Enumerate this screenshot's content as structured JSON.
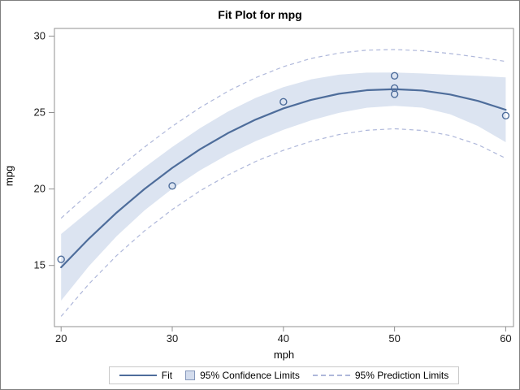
{
  "title": "Fit Plot for mpg",
  "colors": {
    "fit_line": "#4e6d9b",
    "marker": "#4e6d9b",
    "confidence_band": "#dce4f1",
    "prediction_line": "#aeb7da",
    "frame": "#919191",
    "tick_text": "#1a1a1a"
  },
  "legend": {
    "items": [
      {
        "label": "Fit",
        "swatch": "line"
      },
      {
        "label": "95% Confidence Limits",
        "swatch": "square"
      },
      {
        "label": "95% Prediction Limits",
        "swatch": "dashed-line"
      }
    ]
  },
  "chart_data": {
    "type": "scatter",
    "title": "Fit Plot for mpg",
    "xlabel": "mph",
    "ylabel": "mpg",
    "xlim": [
      19.4,
      60.7
    ],
    "ylim": [
      11.0,
      30.5
    ],
    "x_ticks": [
      20,
      30,
      40,
      50,
      60
    ],
    "y_ticks": [
      15,
      20,
      25,
      30
    ],
    "grid": false,
    "legend_position": "bottom",
    "points": [
      [
        20,
        15.4
      ],
      [
        30,
        20.2
      ],
      [
        40,
        25.7
      ],
      [
        50,
        26.2
      ],
      [
        50,
        26.6
      ],
      [
        50,
        27.4
      ],
      [
        60,
        24.8
      ]
    ],
    "fit_curve": {
      "x": [
        20,
        22.5,
        25,
        27.5,
        30,
        32.5,
        35,
        37.5,
        40,
        42.5,
        45,
        47.5,
        50,
        52.5,
        55,
        57.5,
        60
      ],
      "y": [
        14.88,
        16.75,
        18.46,
        20.0,
        21.38,
        22.6,
        23.65,
        24.54,
        25.27,
        25.83,
        26.23,
        26.46,
        26.53,
        26.44,
        26.18,
        25.76,
        25.18
      ]
    },
    "confidence_band": {
      "x": [
        20,
        22.5,
        25,
        27.5,
        30,
        32.5,
        35,
        37.5,
        40,
        42.5,
        45,
        47.5,
        50,
        52.5,
        55,
        57.5,
        60
      ],
      "upper": [
        17.06,
        18.55,
        20.0,
        21.41,
        22.75,
        23.98,
        25.06,
        25.96,
        26.66,
        27.17,
        27.48,
        27.61,
        27.62,
        27.56,
        27.47,
        27.4,
        27.3
      ],
      "lower": [
        12.7,
        14.95,
        16.92,
        18.6,
        20.02,
        21.22,
        22.25,
        23.13,
        23.87,
        24.49,
        24.98,
        25.31,
        25.44,
        25.32,
        24.89,
        24.12,
        23.06
      ]
    },
    "prediction_limits": {
      "x": [
        20,
        22.5,
        25,
        27.5,
        30,
        32.5,
        35,
        37.5,
        40,
        42.5,
        45,
        47.5,
        50,
        52.5,
        55,
        57.5,
        60
      ],
      "upper": [
        18.09,
        19.71,
        21.27,
        22.74,
        24.1,
        25.32,
        26.39,
        27.28,
        28.0,
        28.54,
        28.89,
        29.08,
        29.12,
        29.04,
        28.86,
        28.62,
        28.34
      ],
      "lower": [
        11.67,
        13.79,
        15.65,
        17.26,
        18.66,
        19.88,
        20.91,
        21.8,
        22.53,
        23.12,
        23.56,
        23.84,
        23.94,
        23.83,
        23.5,
        22.9,
        22.01
      ]
    }
  }
}
